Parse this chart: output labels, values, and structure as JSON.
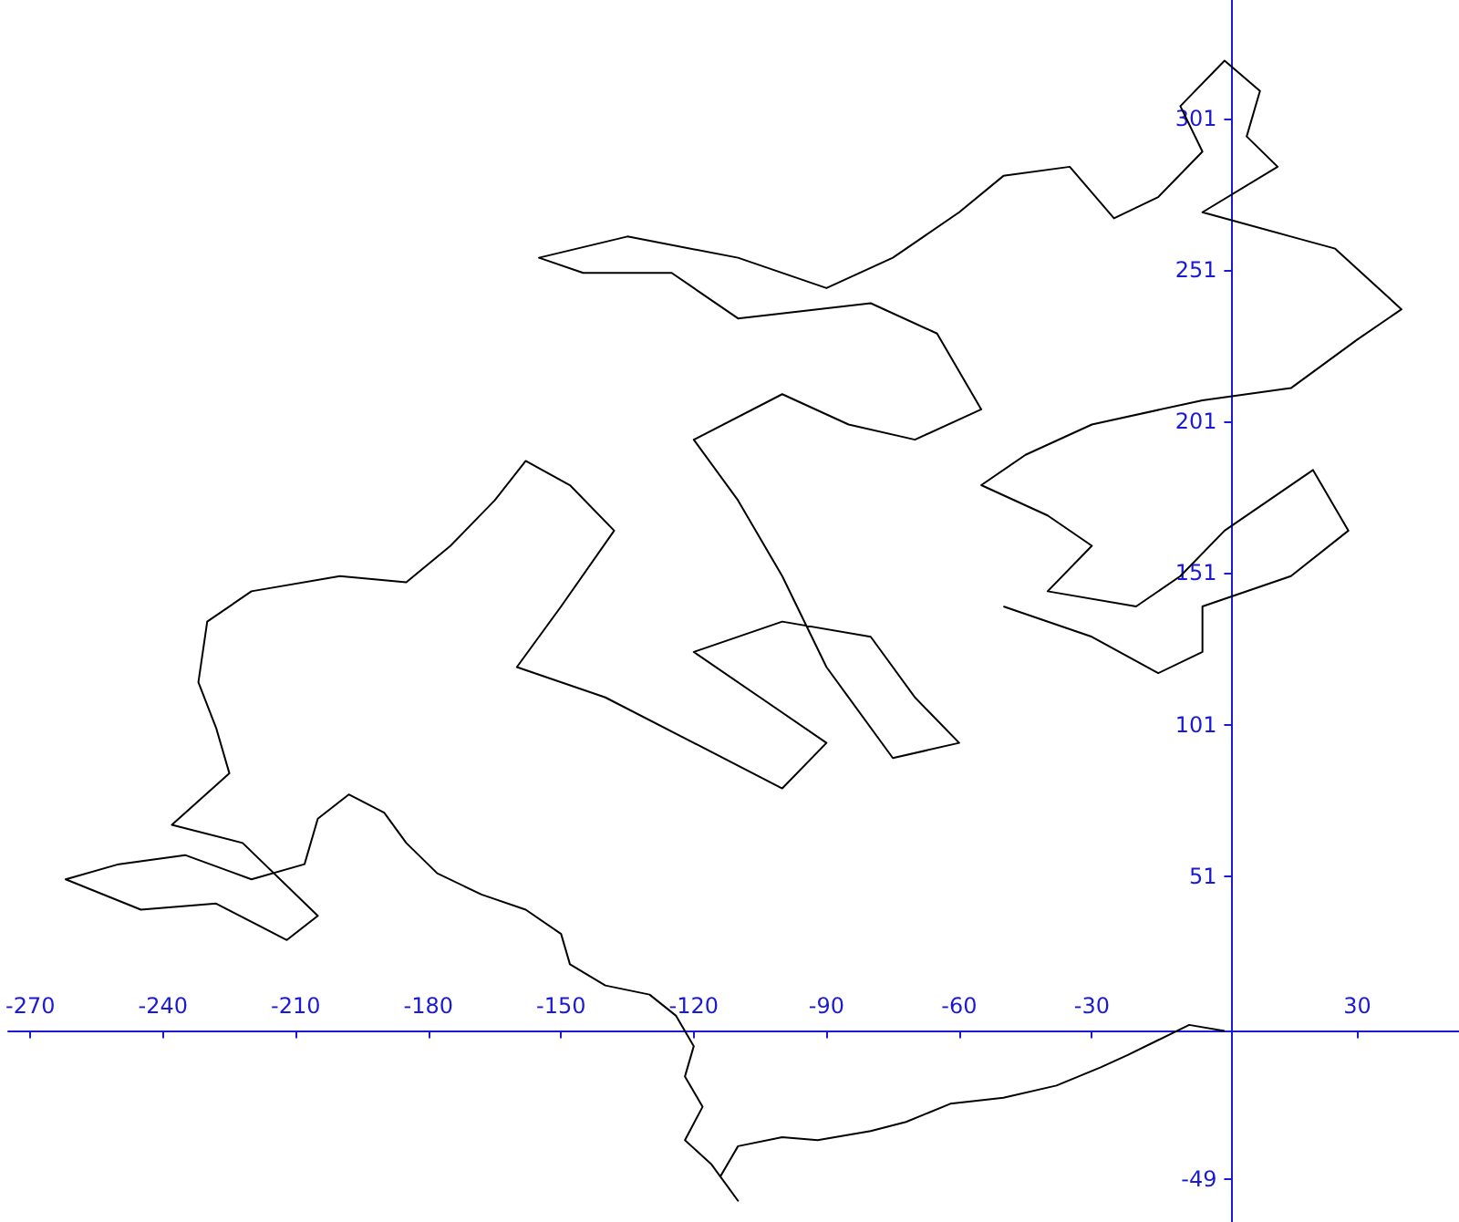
{
  "chart_data": {
    "type": "line",
    "x": [
      0,
      -8,
      -15,
      -22,
      -28,
      -38,
      -50,
      -62,
      -72,
      -80,
      -92,
      -100,
      -110,
      -114,
      -110,
      -116,
      -122,
      -118,
      -122,
      -120,
      -124,
      -130,
      -140,
      -148,
      -150,
      -158,
      -168,
      -178,
      -185,
      -190,
      -198,
      -205,
      -208,
      -220,
      -235,
      -250,
      -262,
      -245,
      -228,
      -212,
      -205,
      -222,
      -238,
      -225,
      -228,
      -232,
      -230,
      -220,
      -200,
      -185,
      -175,
      -165,
      -158,
      -148,
      -138,
      -150,
      -160,
      -140,
      -120,
      -100,
      -90,
      -105,
      -120,
      -100,
      -80,
      -70,
      -60,
      -75,
      -90,
      -100,
      -110,
      -120,
      -100,
      -85,
      -70,
      -55,
      -65,
      -80,
      -110,
      -125,
      -145,
      -155,
      -135,
      -110,
      -90,
      -75,
      -60,
      -50,
      -35,
      -25,
      -15,
      -5,
      -10,
      0,
      8,
      5,
      12,
      -5,
      15,
      25,
      40,
      30,
      15,
      -5,
      -30,
      -45,
      -55,
      -40,
      -30,
      -40,
      -20,
      -10,
      0,
      10,
      20,
      28,
      15,
      -5,
      -5,
      -15,
      -30,
      -50
    ],
    "values": [
      0,
      2,
      -3,
      -8,
      -12,
      -18,
      -22,
      -24,
      -30,
      -33,
      -36,
      -35,
      -38,
      -48,
      -56,
      -44,
      -36,
      -25,
      -15,
      -5,
      5,
      12,
      15,
      22,
      32,
      40,
      45,
      52,
      62,
      72,
      78,
      70,
      55,
      50,
      58,
      55,
      50,
      40,
      42,
      30,
      38,
      62,
      68,
      85,
      100,
      115,
      135,
      145,
      150,
      148,
      160,
      175,
      188,
      180,
      165,
      140,
      120,
      110,
      95,
      80,
      95,
      110,
      125,
      135,
      130,
      110,
      95,
      90,
      120,
      150,
      175,
      195,
      210,
      200,
      195,
      205,
      230,
      240,
      235,
      250,
      250,
      255,
      262,
      255,
      245,
      255,
      270,
      282,
      285,
      268,
      275,
      290,
      305,
      320,
      310,
      295,
      285,
      270,
      262,
      258,
      238,
      228,
      212,
      208,
      200,
      190,
      180,
      170,
      160,
      145,
      140,
      150,
      165,
      175,
      185,
      165,
      150,
      140,
      125,
      118,
      130,
      140
    ],
    "color": "#000000",
    "marker": "none",
    "grid": false,
    "xlim": [
      -275,
      53
    ],
    "xticks": [
      -270,
      -240,
      -210,
      -180,
      -150,
      -120,
      -90,
      -60,
      -30,
      30
    ],
    "ylim": [
      -63,
      340
    ],
    "yticks": [
      -49,
      51,
      101,
      151,
      201,
      251,
      301
    ]
  }
}
